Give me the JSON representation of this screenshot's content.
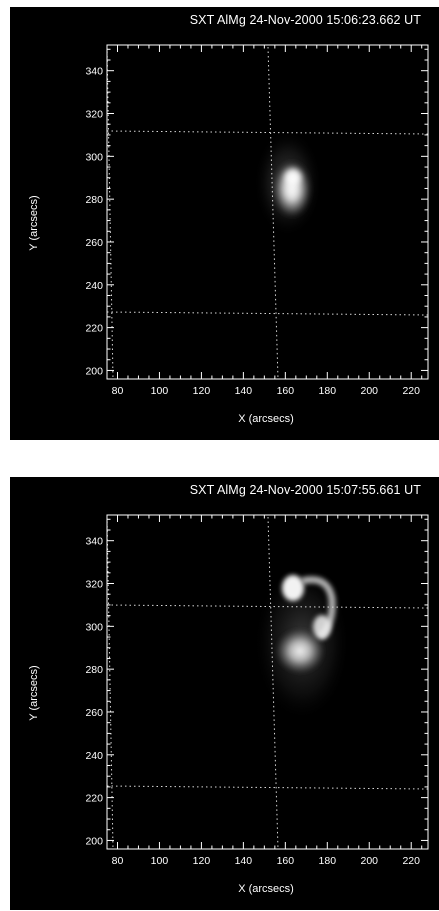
{
  "panels": [
    {
      "title": "SXT AlMg 24-Nov-2000 15:06:23.662 UT",
      "xlabel": "X (arcsecs)",
      "ylabel": "Y (arcsecs)",
      "xticks": [
        "80",
        "100",
        "120",
        "140",
        "160",
        "180",
        "200",
        "220"
      ],
      "yticks": [
        "200",
        "220",
        "240",
        "260",
        "280",
        "300",
        "320",
        "340"
      ]
    },
    {
      "title": "SXT AlMg 24-Nov-2000 15:07:55.661 UT",
      "xlabel": "X (arcsecs)",
      "ylabel": "Y (arcsecs)",
      "xticks": [
        "80",
        "100",
        "120",
        "140",
        "160",
        "180",
        "200",
        "220"
      ],
      "yticks": [
        "200",
        "220",
        "240",
        "260",
        "280",
        "300",
        "320",
        "340"
      ]
    }
  ],
  "axes": {
    "xlim": [
      75,
      228
    ],
    "ylim": [
      196,
      352
    ]
  }
}
